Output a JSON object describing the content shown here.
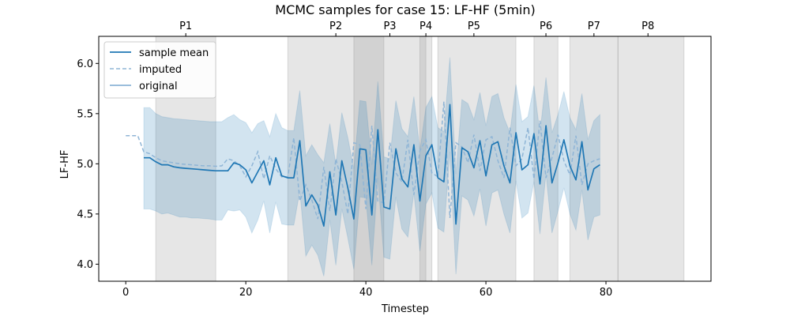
{
  "chart_data": {
    "type": "line",
    "title": "MCMC samples for case 15: LF-HF (5min)",
    "xlabel": "Timestep",
    "ylabel": "LF-HF",
    "xlim": [
      -4.5,
      97.5
    ],
    "ylim": [
      3.83,
      6.27
    ],
    "xticks": [
      0,
      20,
      40,
      60,
      80
    ],
    "yticks": [
      4.0,
      4.5,
      5.0,
      5.5,
      6.0
    ],
    "ytick_labels": [
      "4.0",
      "4.5",
      "5.0",
      "5.5",
      "6.0"
    ],
    "legend": {
      "position": "top-left",
      "entries": [
        {
          "label": "sample mean",
          "style": "solid",
          "color": "#1f77b4"
        },
        {
          "label": "imputed",
          "style": "dashed",
          "color": "#8fb5d6"
        },
        {
          "label": "original",
          "style": "solid",
          "color": "#7aa9d0"
        }
      ]
    },
    "periods": [
      {
        "label": "P1",
        "start": 5,
        "end": 15
      },
      {
        "label": "P2",
        "start": 27,
        "end": 43
      },
      {
        "label": "P3",
        "start": 38,
        "end": 51
      },
      {
        "label": "P4",
        "start": 49,
        "end": 50
      },
      {
        "label": "P5",
        "start": 52,
        "end": 65
      },
      {
        "label": "P6",
        "start": 68,
        "end": 72
      },
      {
        "label": "P7",
        "start": 74,
        "end": 82
      },
      {
        "label": "P8",
        "start": 82,
        "end": 93
      }
    ],
    "period_label_positions": [
      10,
      35,
      44,
      50,
      58,
      70,
      78,
      87
    ],
    "series": [
      {
        "name": "sample mean",
        "x": [
          3,
          4,
          5,
          6,
          7,
          8,
          9,
          10,
          11,
          12,
          13,
          14,
          15,
          16,
          17,
          18,
          19,
          20,
          21,
          22,
          23,
          24,
          25,
          26,
          27,
          28,
          29,
          30,
          31,
          32,
          33,
          34,
          35,
          36,
          37,
          38,
          39,
          40,
          41,
          42,
          43,
          44,
          45,
          46,
          47,
          48,
          49,
          50,
          51,
          52,
          53,
          54,
          55,
          56,
          57,
          58,
          59,
          60,
          61,
          62,
          63,
          64,
          65,
          66,
          67,
          68,
          69,
          70,
          71,
          72,
          73,
          74,
          75,
          76,
          77,
          78,
          79
        ],
        "y": [
          5.06,
          5.06,
          5.02,
          4.99,
          4.99,
          4.97,
          4.96,
          4.955,
          4.95,
          4.945,
          4.94,
          4.935,
          4.93,
          4.93,
          4.93,
          5.01,
          4.99,
          4.94,
          4.81,
          4.92,
          5.03,
          4.79,
          5.06,
          4.88,
          4.86,
          4.86,
          5.23,
          4.58,
          4.69,
          4.59,
          4.38,
          4.92,
          4.49,
          5.03,
          4.76,
          4.45,
          5.15,
          5.14,
          4.49,
          5.34,
          4.57,
          4.55,
          5.15,
          4.85,
          4.77,
          5.19,
          4.63,
          5.08,
          5.19,
          4.86,
          4.82,
          5.59,
          4.4,
          5.16,
          5.12,
          4.96,
          5.23,
          4.88,
          5.19,
          5.22,
          4.98,
          4.81,
          5.31,
          4.94,
          4.99,
          5.3,
          4.8,
          5.38,
          4.81,
          5.01,
          5.24,
          4.98,
          4.84,
          5.22,
          4.74,
          4.95,
          4.99
        ]
      },
      {
        "name": "imputed",
        "x": [
          0,
          1,
          2,
          3,
          4,
          5,
          6,
          7,
          8,
          9,
          10,
          11,
          12,
          13,
          14,
          15,
          16,
          17,
          18,
          19,
          20,
          21,
          22,
          23,
          24,
          25,
          26,
          27,
          28,
          29,
          30,
          31,
          32,
          33,
          34,
          35,
          36,
          37,
          38,
          39,
          40,
          41,
          42,
          43,
          44,
          45,
          46,
          47,
          48,
          49,
          50,
          51,
          52,
          53,
          54,
          55,
          56,
          57,
          58,
          59,
          60,
          61,
          62,
          63,
          64,
          65,
          66,
          67,
          68,
          69,
          70,
          71,
          72,
          73,
          74,
          75,
          76,
          77,
          78,
          79
        ],
        "y": [
          5.28,
          5.28,
          5.28,
          5.12,
          5.1,
          5.06,
          5.03,
          5.02,
          5.01,
          5.0,
          4.995,
          4.99,
          4.985,
          4.98,
          4.98,
          4.975,
          4.98,
          5.05,
          5.03,
          4.98,
          4.87,
          4.98,
          5.12,
          4.85,
          5.08,
          4.95,
          4.87,
          4.87,
          5.26,
          4.63,
          4.79,
          4.64,
          4.45,
          4.97,
          4.53,
          5.05,
          4.82,
          4.5,
          5.21,
          5.19,
          4.55,
          5.38,
          4.63,
          4.61,
          5.21,
          4.91,
          4.82,
          5.24,
          4.69,
          5.13,
          5.24,
          4.91,
          4.87,
          5.62,
          4.46,
          5.21,
          5.17,
          5.01,
          5.29,
          4.93,
          5.24,
          5.27,
          5.03,
          4.86,
          5.36,
          4.98,
          5.05,
          5.36,
          4.85,
          5.43,
          4.86,
          5.06,
          5.29,
          5.03,
          4.89,
          5.28,
          4.79,
          5.0,
          5.03,
          5.05
        ]
      }
    ],
    "band": {
      "name": "credible interval",
      "x": [
        3,
        4,
        5,
        6,
        7,
        8,
        9,
        10,
        11,
        12,
        13,
        14,
        15,
        16,
        17,
        18,
        19,
        20,
        21,
        22,
        23,
        24,
        25,
        26,
        27,
        28,
        29,
        30,
        31,
        32,
        33,
        34,
        35,
        36,
        37,
        38,
        39,
        40,
        41,
        42,
        43,
        44,
        45,
        46,
        47,
        48,
        49,
        50,
        51,
        52,
        53,
        54,
        55,
        56,
        57,
        58,
        59,
        60,
        61,
        62,
        63,
        64,
        65,
        66,
        67,
        68,
        69,
        70,
        71,
        72,
        73,
        74,
        75,
        76,
        77,
        78,
        79
      ],
      "upper": [
        5.56,
        5.56,
        5.5,
        5.47,
        5.46,
        5.45,
        5.445,
        5.44,
        5.435,
        5.43,
        5.425,
        5.42,
        5.42,
        5.42,
        5.46,
        5.49,
        5.44,
        5.41,
        5.31,
        5.4,
        5.43,
        5.27,
        5.5,
        5.36,
        5.33,
        5.33,
        5.73,
        5.08,
        5.19,
        5.09,
        5.01,
        5.4,
        4.99,
        5.51,
        5.26,
        4.95,
        5.63,
        5.62,
        4.99,
        5.82,
        5.07,
        5.05,
        5.63,
        5.35,
        5.27,
        5.67,
        5.13,
        5.56,
        5.67,
        5.36,
        5.32,
        6.06,
        4.9,
        5.64,
        5.6,
        5.44,
        5.71,
        5.38,
        5.67,
        5.7,
        5.46,
        5.31,
        5.79,
        5.42,
        5.47,
        5.78,
        5.3,
        5.86,
        5.31,
        5.49,
        5.72,
        5.46,
        5.34,
        5.7,
        5.24,
        5.43,
        5.49
      ],
      "lower": [
        4.55,
        4.55,
        4.53,
        4.5,
        4.51,
        4.49,
        4.47,
        4.47,
        4.46,
        4.46,
        4.455,
        4.45,
        4.44,
        4.44,
        4.54,
        4.53,
        4.54,
        4.47,
        4.31,
        4.44,
        4.63,
        4.31,
        4.62,
        4.4,
        4.39,
        4.39,
        4.73,
        4.08,
        4.19,
        4.09,
        3.88,
        4.44,
        3.99,
        4.55,
        4.26,
        3.95,
        4.67,
        4.66,
        3.99,
        4.86,
        4.07,
        4.05,
        4.67,
        4.35,
        4.27,
        4.71,
        4.13,
        4.6,
        4.71,
        4.36,
        4.32,
        5.12,
        3.9,
        4.68,
        4.64,
        4.48,
        4.75,
        4.38,
        4.71,
        4.74,
        4.5,
        4.31,
        4.83,
        4.46,
        4.51,
        4.82,
        4.3,
        4.9,
        4.31,
        4.53,
        4.76,
        4.5,
        4.34,
        4.74,
        4.24,
        4.47,
        4.49
      ]
    }
  }
}
